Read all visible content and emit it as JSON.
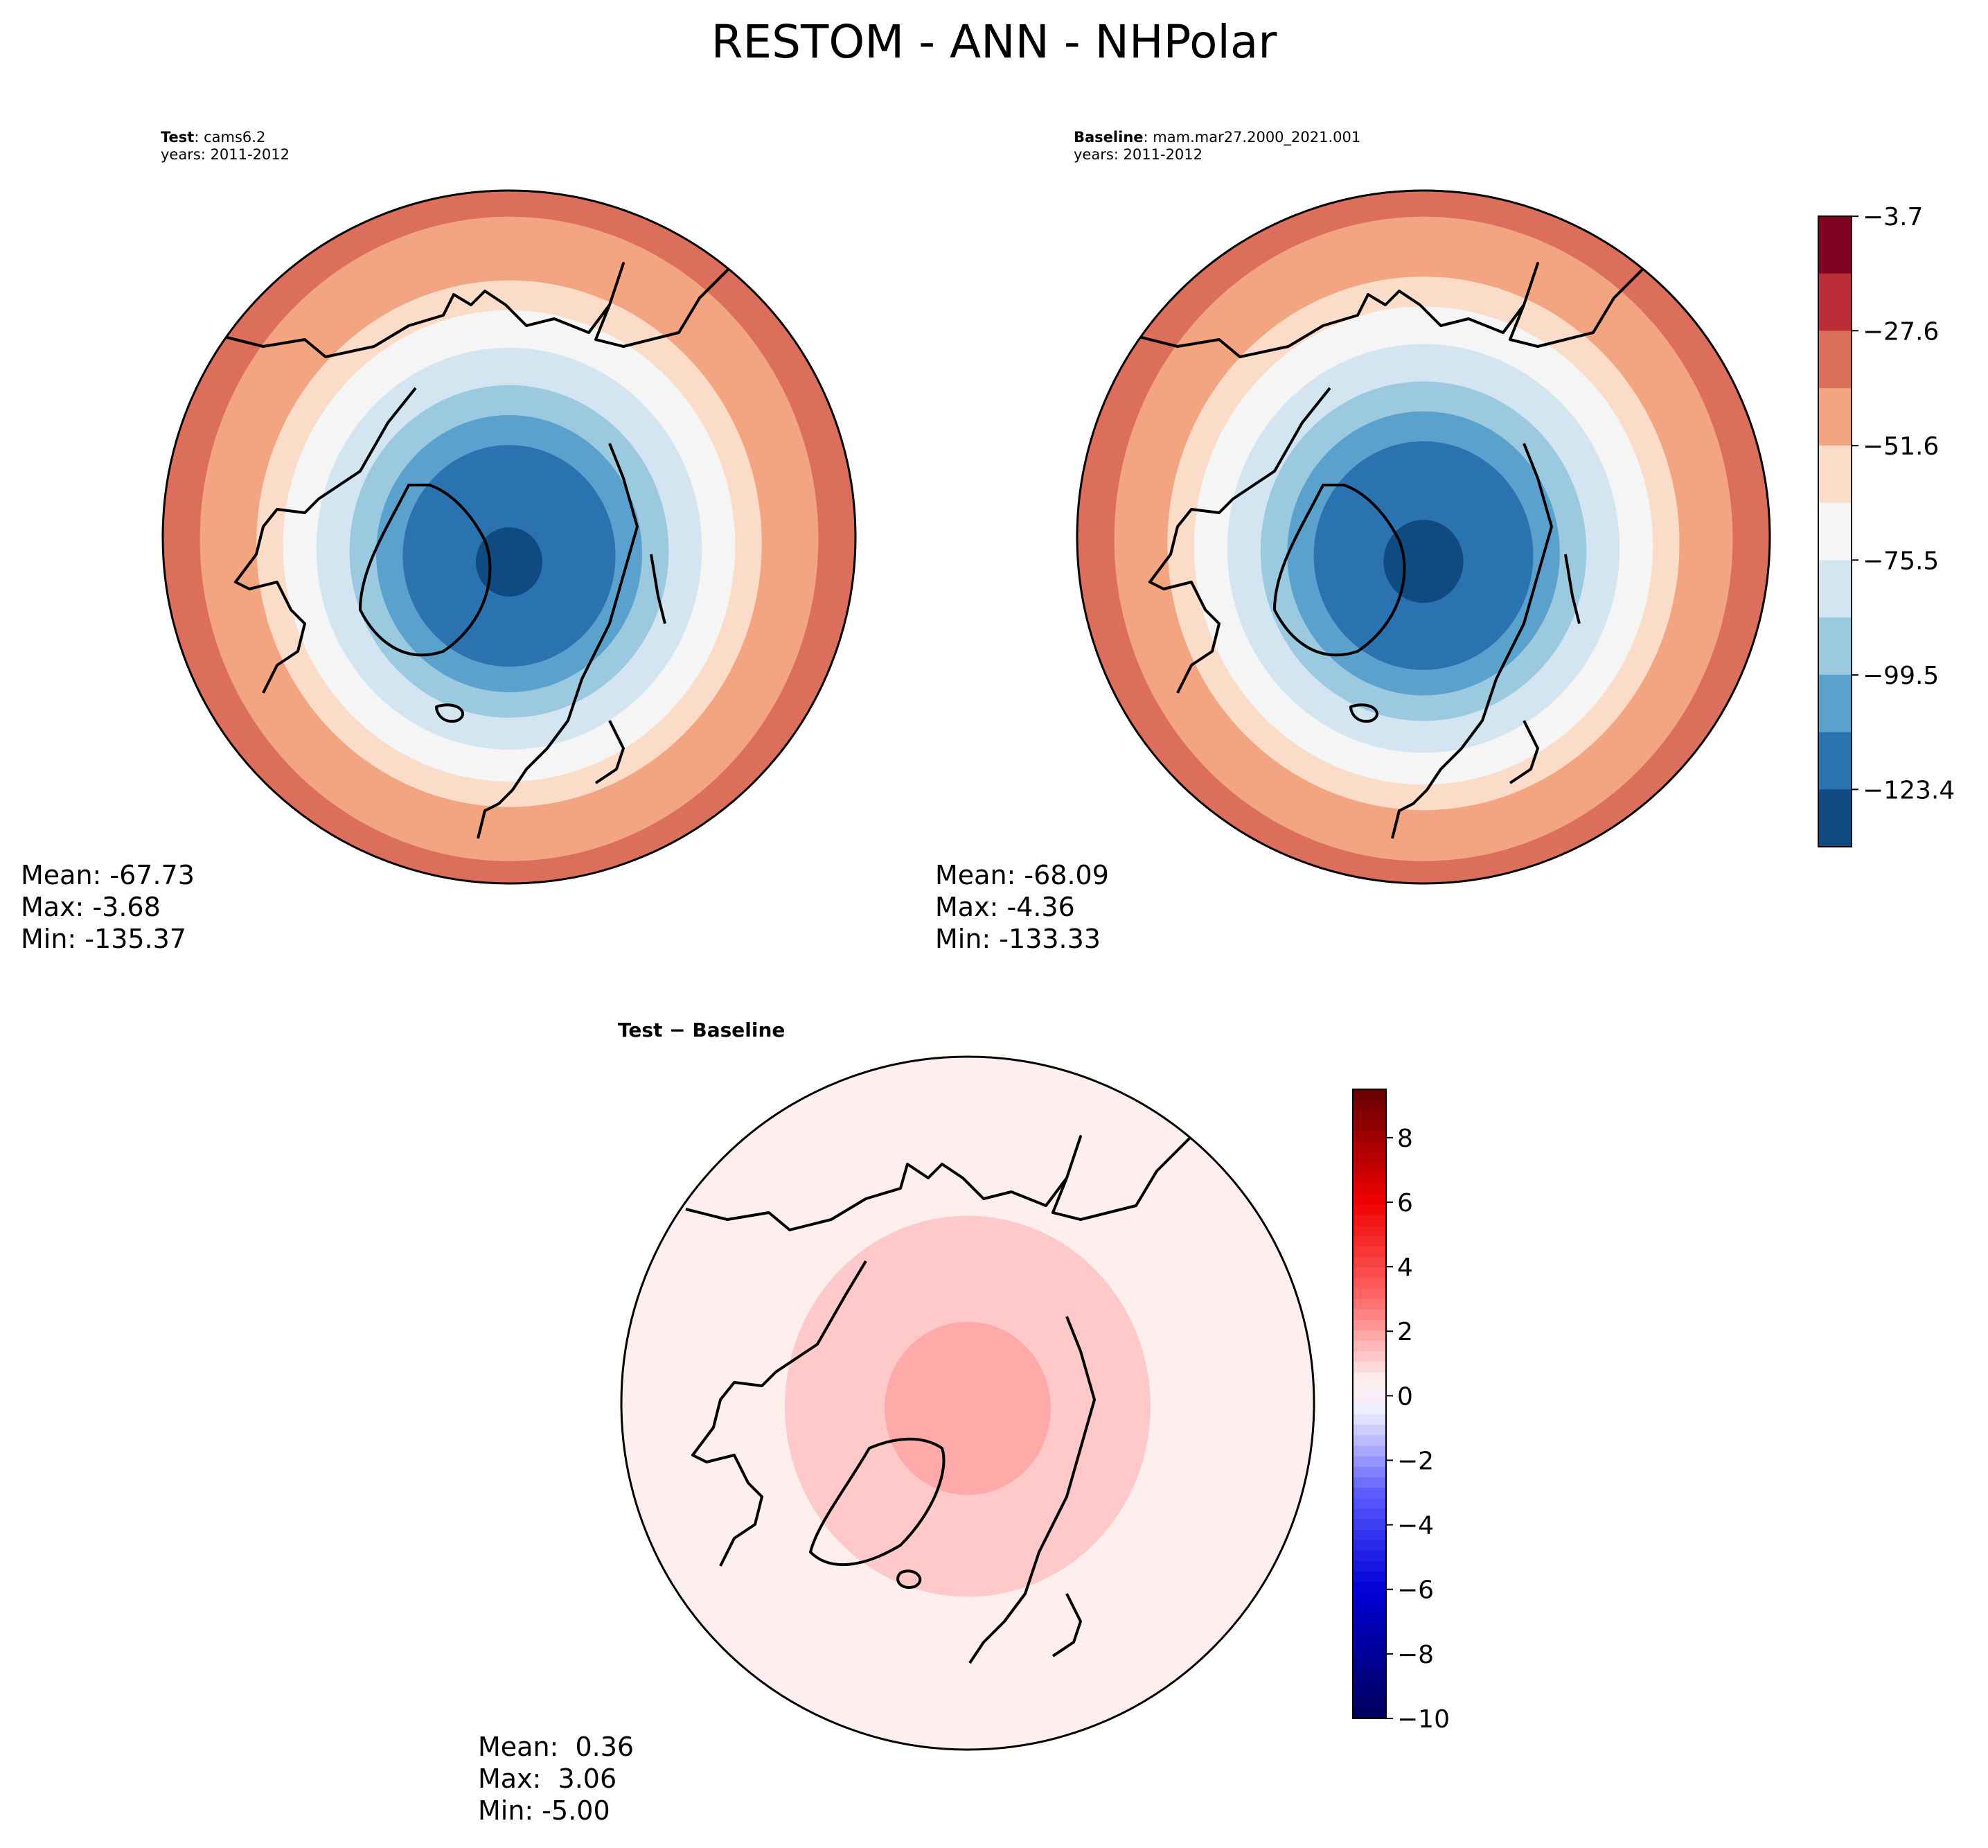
{
  "chart_data": {
    "title": "RESTOM - ANN - NHPolar",
    "panels": [
      {
        "type": "heatmap",
        "projection": "north-polar-stereographic",
        "label_bold": "Test",
        "label_sep": ": ",
        "label_value": "cams6.2",
        "years": "years: 2011-2012",
        "stats": {
          "mean": "Mean: -67.73",
          "max": "Max: -3.68",
          "min": "Min: -135.37"
        },
        "rings": [
          {
            "level": -30,
            "radius_frac": 1.0
          },
          {
            "level": -40,
            "radius_frac": 0.93
          },
          {
            "level": -50,
            "radius_frac": 0.84
          },
          {
            "level": -60,
            "radius_frac": 0.76
          },
          {
            "level": -70,
            "radius_frac": 0.68
          },
          {
            "level": -80,
            "radius_frac": 0.58
          },
          {
            "level": -90,
            "radius_frac": 0.48
          },
          {
            "level": -110,
            "radius_frac": 0.4
          },
          {
            "level": -120,
            "radius_frac": 0.32
          },
          {
            "level": -130,
            "radius_frac": 0.1
          }
        ]
      },
      {
        "type": "heatmap",
        "projection": "north-polar-stereographic",
        "label_bold": "Baseline",
        "label_sep": ": ",
        "label_value": "mam.mar27.2000_2021.001",
        "years": "years: 2011-2012",
        "stats": {
          "mean": "Mean: -68.09",
          "max": "Max: -4.36",
          "min": "Min: -133.33"
        },
        "rings": [
          {
            "level": -30,
            "radius_frac": 1.0
          },
          {
            "level": -40,
            "radius_frac": 0.93
          },
          {
            "level": -50,
            "radius_frac": 0.85
          },
          {
            "level": -60,
            "radius_frac": 0.77
          },
          {
            "level": -70,
            "radius_frac": 0.69
          },
          {
            "level": -80,
            "radius_frac": 0.59
          },
          {
            "level": -90,
            "radius_frac": 0.49
          },
          {
            "level": -110,
            "radius_frac": 0.41
          },
          {
            "level": -120,
            "radius_frac": 0.33
          },
          {
            "level": -130,
            "radius_frac": 0.12
          }
        ]
      },
      {
        "type": "heatmap",
        "projection": "north-polar-stereographic",
        "label_bold": "Test − Baseline",
        "stats": {
          "mean": "Mean:  0.36",
          "max": "Max:  3.06",
          "min": "Min: -5.00"
        },
        "rings": [
          {
            "level": 0.5,
            "radius_frac": 1.0
          },
          {
            "level": 1.2,
            "radius_frac": 0.55
          },
          {
            "level": 1.8,
            "radius_frac": 0.25
          }
        ]
      }
    ],
    "colorbar_main": {
      "range": [
        -135.37,
        -3.68
      ],
      "ticks": [
        -3.7,
        -27.6,
        -51.6,
        -75.5,
        -99.5,
        -123.4
      ],
      "tick_labels": [
        "−3.7",
        "−27.6",
        "−51.6",
        "−75.5",
        "−99.5",
        "−123.4"
      ],
      "colors": [
        "#7f0020",
        "#bc2e37",
        "#dc6f5b",
        "#f3a582",
        "#fbdcc8",
        "#f5f5f5",
        "#d3e5f1",
        "#9bc9e0",
        "#5aa2cd",
        "#2b72b0",
        "#0f4a81"
      ]
    },
    "colorbar_diff": {
      "range": [
        -10,
        9.5
      ],
      "ticks": [
        8,
        6,
        4,
        2,
        0,
        -2,
        -4,
        -6,
        -8,
        -10
      ],
      "tick_labels": [
        "8",
        "6",
        "4",
        "2",
        "0",
        "−2",
        "−4",
        "−6",
        "−8",
        "−10"
      ],
      "stops": [
        {
          "value": -10,
          "color": "#00005a"
        },
        {
          "value": -6,
          "color": "#0000d8"
        },
        {
          "value": -3,
          "color": "#5d5dff"
        },
        {
          "value": -0.5,
          "color": "#eeeeff"
        },
        {
          "value": 0.5,
          "color": "#ffeeee"
        },
        {
          "value": 3,
          "color": "#ff6a6a"
        },
        {
          "value": 6,
          "color": "#f00000"
        },
        {
          "value": 9.5,
          "color": "#640000"
        }
      ]
    }
  }
}
